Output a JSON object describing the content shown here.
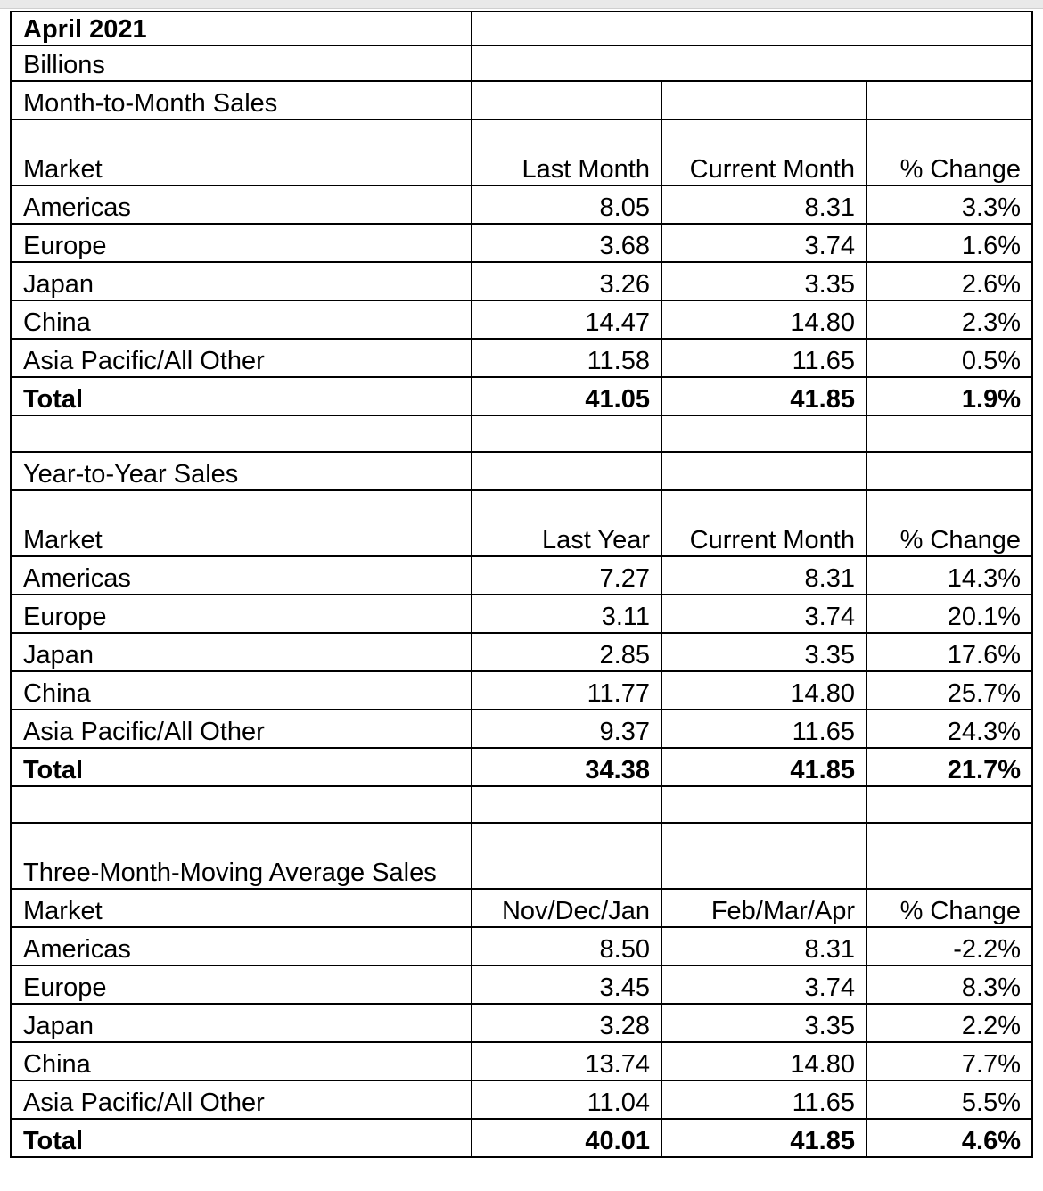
{
  "header": {
    "title": "April 2021",
    "units": "Billions"
  },
  "sections": [
    {
      "name": "Month-to-Month Sales",
      "columns": {
        "market": "Market",
        "prev": "Last Month",
        "curr": "Current Month",
        "change": "% Change"
      },
      "rows": [
        {
          "market": "Americas",
          "prev": "8.05",
          "curr": "8.31",
          "change": "3.3%"
        },
        {
          "market": "Europe",
          "prev": "3.68",
          "curr": "3.74",
          "change": "1.6%"
        },
        {
          "market": "Japan",
          "prev": "3.26",
          "curr": "3.35",
          "change": "2.6%"
        },
        {
          "market": "China",
          "prev": "14.47",
          "curr": "14.80",
          "change": "2.3%"
        },
        {
          "market": "Asia Pacific/All Other",
          "prev": "11.58",
          "curr": "11.65",
          "change": "0.5%"
        }
      ],
      "total": {
        "market": "Total",
        "prev": "41.05",
        "curr": "41.85",
        "change": "1.9%"
      }
    },
    {
      "name": "Year-to-Year Sales",
      "columns": {
        "market": "Market",
        "prev": "Last Year",
        "curr": "Current Month",
        "change": "% Change"
      },
      "rows": [
        {
          "market": "Americas",
          "prev": "7.27",
          "curr": "8.31",
          "change": "14.3%"
        },
        {
          "market": "Europe",
          "prev": "3.11",
          "curr": "3.74",
          "change": "20.1%"
        },
        {
          "market": "Japan",
          "prev": "2.85",
          "curr": "3.35",
          "change": "17.6%"
        },
        {
          "market": "China",
          "prev": "11.77",
          "curr": "14.80",
          "change": "25.7%"
        },
        {
          "market": "Asia Pacific/All Other",
          "prev": "9.37",
          "curr": "11.65",
          "change": "24.3%"
        }
      ],
      "total": {
        "market": "Total",
        "prev": "34.38",
        "curr": "41.85",
        "change": "21.7%"
      }
    },
    {
      "name": "Three-Month-Moving Average Sales",
      "columns": {
        "market": "Market",
        "prev": "Nov/Dec/Jan",
        "curr": "Feb/Mar/Apr",
        "change": "% Change"
      },
      "rows": [
        {
          "market": "Americas",
          "prev": "8.50",
          "curr": "8.31",
          "change": "-2.2%"
        },
        {
          "market": "Europe",
          "prev": "3.45",
          "curr": "3.74",
          "change": "8.3%"
        },
        {
          "market": "Japan",
          "prev": "3.28",
          "curr": "3.35",
          "change": "2.2%"
        },
        {
          "market": "China",
          "prev": "13.74",
          "curr": "14.80",
          "change": "7.7%"
        },
        {
          "market": "Asia Pacific/All Other",
          "prev": "11.04",
          "curr": "11.65",
          "change": "5.5%"
        }
      ],
      "total": {
        "market": "Total",
        "prev": "40.01",
        "curr": "41.85",
        "change": "4.6%"
      }
    }
  ]
}
